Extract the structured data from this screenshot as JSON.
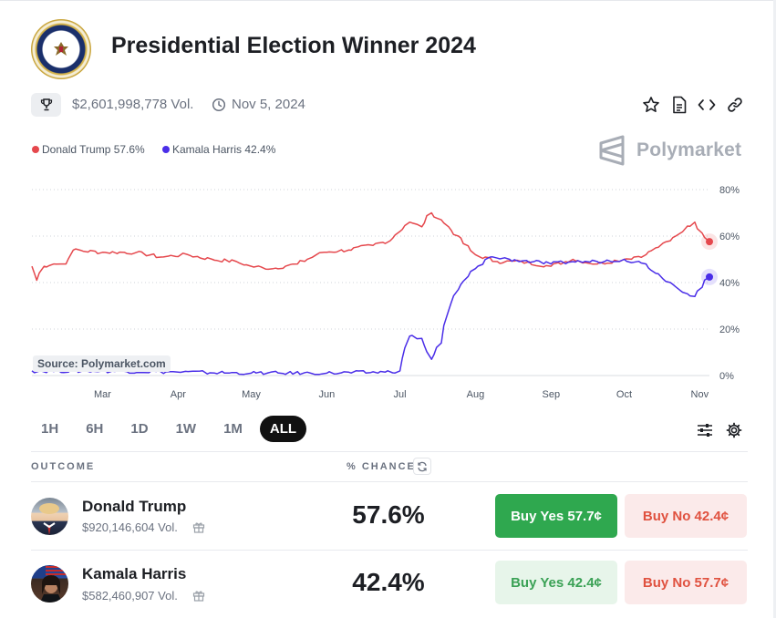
{
  "header": {
    "title": "Presidential Election Winner 2024",
    "volume": "$2,601,998,778 Vol.",
    "end_date": "Nov 5, 2024"
  },
  "toolbar": {
    "icons": [
      "star-icon",
      "document-icon",
      "embed-code-icon",
      "link-icon"
    ]
  },
  "legend": {
    "items": [
      {
        "label": "Donald Trump 57.6%",
        "color": "#e5484d"
      },
      {
        "label": "Kamala Harris 42.4%",
        "color": "#4a2ee8"
      }
    ]
  },
  "brand": {
    "name": "Polymarket"
  },
  "chart_source": "Source: Polymarket.com",
  "chart_data": {
    "type": "line",
    "title": "",
    "xlabel": "",
    "ylabel": "",
    "x_ticks": [
      "Mar",
      "Apr",
      "May",
      "Jun",
      "Jul",
      "Aug",
      "Sep",
      "Oct",
      "Nov"
    ],
    "y_ticks": [
      "0%",
      "20%",
      "40%",
      "60%",
      "80%"
    ],
    "ylim": [
      0,
      80
    ],
    "grid": true,
    "y_axis_side": "right",
    "series": [
      {
        "name": "Donald Trump",
        "color": "#e5484d",
        "values": [
          [
            "2024-02-01",
            47
          ],
          [
            "2024-02-03",
            41
          ],
          [
            "2024-02-06",
            47
          ],
          [
            "2024-02-10",
            48
          ],
          [
            "2024-02-15",
            48
          ],
          [
            "2024-02-18",
            54
          ],
          [
            "2024-03-01",
            53
          ],
          [
            "2024-03-15",
            53
          ],
          [
            "2024-03-25",
            51
          ],
          [
            "2024-04-05",
            52
          ],
          [
            "2024-04-15",
            50
          ],
          [
            "2024-04-25",
            49
          ],
          [
            "2024-05-01",
            47
          ],
          [
            "2024-05-10",
            46
          ],
          [
            "2024-05-20",
            48
          ],
          [
            "2024-05-31",
            53
          ],
          [
            "2024-06-10",
            54
          ],
          [
            "2024-06-20",
            56
          ],
          [
            "2024-06-27",
            58
          ],
          [
            "2024-07-01",
            62
          ],
          [
            "2024-07-05",
            66
          ],
          [
            "2024-07-10",
            64
          ],
          [
            "2024-07-14",
            70
          ],
          [
            "2024-07-18",
            67
          ],
          [
            "2024-07-21",
            64
          ],
          [
            "2024-07-25",
            60
          ],
          [
            "2024-08-01",
            52
          ],
          [
            "2024-08-10",
            49
          ],
          [
            "2024-08-20",
            49
          ],
          [
            "2024-09-01",
            47
          ],
          [
            "2024-09-10",
            50
          ],
          [
            "2024-09-20",
            48
          ],
          [
            "2024-10-01",
            50
          ],
          [
            "2024-10-10",
            52
          ],
          [
            "2024-10-20",
            58
          ],
          [
            "2024-10-30",
            66
          ],
          [
            "2024-11-05",
            57.6
          ]
        ]
      },
      {
        "name": "Kamala Harris",
        "color": "#4a2ee8",
        "values": [
          [
            "2024-02-01",
            2
          ],
          [
            "2024-03-01",
            2
          ],
          [
            "2024-04-01",
            1.5
          ],
          [
            "2024-05-01",
            1
          ],
          [
            "2024-06-01",
            1
          ],
          [
            "2024-06-25",
            1.5
          ],
          [
            "2024-07-01",
            2
          ],
          [
            "2024-07-05",
            17
          ],
          [
            "2024-07-10",
            16
          ],
          [
            "2024-07-14",
            7
          ],
          [
            "2024-07-18",
            14
          ],
          [
            "2024-07-21",
            28
          ],
          [
            "2024-07-25",
            37
          ],
          [
            "2024-08-01",
            46
          ],
          [
            "2024-08-07",
            51
          ],
          [
            "2024-08-15",
            50
          ],
          [
            "2024-08-25",
            49
          ],
          [
            "2024-09-01",
            48
          ],
          [
            "2024-09-10",
            49
          ],
          [
            "2024-09-20",
            49
          ],
          [
            "2024-10-01",
            50
          ],
          [
            "2024-10-10",
            48
          ],
          [
            "2024-10-20",
            40
          ],
          [
            "2024-10-30",
            34
          ],
          [
            "2024-11-05",
            42.4
          ]
        ]
      }
    ]
  },
  "time_ranges": [
    "1H",
    "6H",
    "1D",
    "1W",
    "1M",
    "ALL"
  ],
  "active_range": "ALL",
  "table": {
    "col_outcome": "OUTCOME",
    "col_chance": "% CHANCE",
    "rows": [
      {
        "name": "Donald Trump",
        "volume": "$920,146,604 Vol.",
        "chance": "57.6%",
        "buy_yes": "Buy Yes 57.7¢",
        "buy_no": "Buy No 42.4¢"
      },
      {
        "name": "Kamala Harris",
        "volume": "$582,460,907 Vol.",
        "chance": "42.4%",
        "buy_yes": "Buy Yes 42.4¢",
        "buy_no": "Buy No 57.7¢"
      }
    ]
  }
}
